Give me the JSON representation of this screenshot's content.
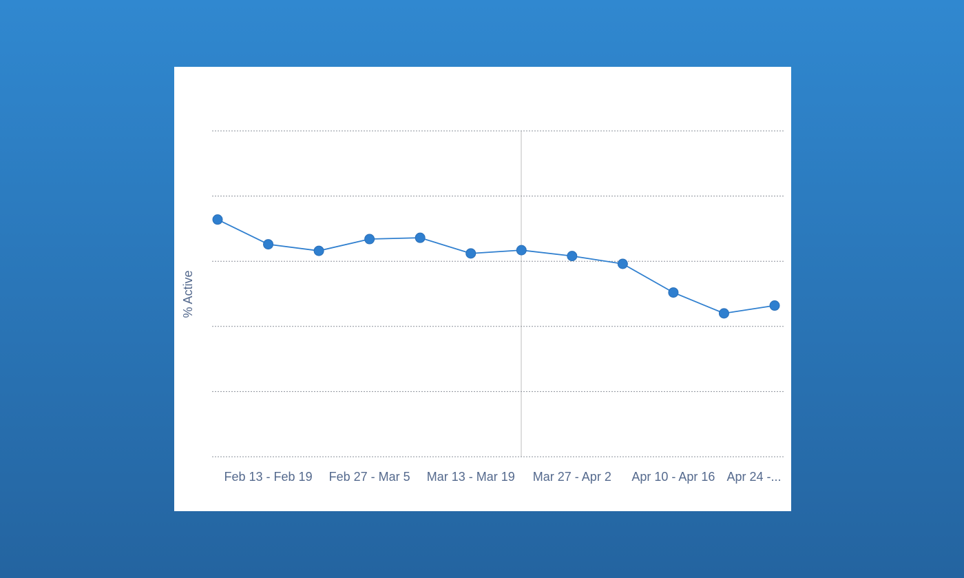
{
  "chart_data": {
    "type": "line",
    "y_label": "% Active",
    "categories": [
      null,
      "Feb 13 - Feb 19",
      null,
      "Feb 27 - Mar 5",
      null,
      "Mar 13 - Mar 19",
      null,
      "Mar 27 - Apr 2",
      null,
      "Apr 10 - Apr 16",
      null,
      "Apr 24 -..."
    ],
    "series": [
      {
        "name": "% Active",
        "color": "#2f7fcf",
        "values": [
          3.64,
          3.26,
          3.16,
          3.34,
          3.36,
          3.12,
          3.17,
          3.08,
          2.96,
          2.52,
          2.2,
          2.32
        ]
      }
    ],
    "ylim": [
      0,
      5
    ],
    "yticks": [
      0,
      1,
      2,
      3,
      4,
      5
    ],
    "grid": true
  }
}
